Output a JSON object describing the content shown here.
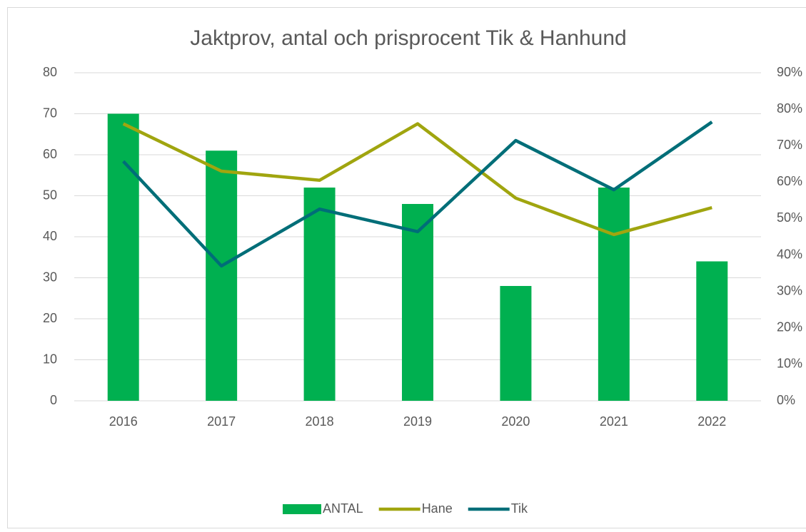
{
  "chart_data": {
    "type": "bar_line",
    "title": "Jaktprov, antal och prisprocent Tik & Hanhund",
    "categories": [
      "2016",
      "2017",
      "2018",
      "2019",
      "2020",
      "2021",
      "2022"
    ],
    "series": [
      {
        "name": "ANTAL",
        "type": "bar",
        "color": "#00b050",
        "values": [
          70,
          61,
          52,
          48,
          28,
          52,
          34
        ]
      },
      {
        "name": "Hane",
        "type": "line",
        "axis": "y2",
        "color": "#a0a50f",
        "values": [
          76,
          63,
          60.5,
          76,
          55.6,
          45.6,
          53
        ]
      },
      {
        "name": "Tik",
        "type": "line",
        "axis": "y2",
        "color": "#006e78",
        "values": [
          65.7,
          37,
          52.6,
          46.4,
          71.4,
          57.9,
          76.5
        ]
      }
    ],
    "ylim": [
      0,
      80
    ],
    "yticks": [
      0,
      10,
      20,
      30,
      40,
      50,
      60,
      70,
      80
    ],
    "y2lim": [
      0,
      90
    ],
    "y2ticks": [
      {
        "value": 0,
        "label": "0%"
      },
      {
        "value": 10,
        "label": "10%"
      },
      {
        "value": 20,
        "label": "20%"
      },
      {
        "value": 30,
        "label": "30%"
      },
      {
        "value": 40,
        "label": "40%"
      },
      {
        "value": 50,
        "label": "50%"
      },
      {
        "value": 60,
        "label": "60%"
      },
      {
        "value": 70,
        "label": "70%"
      },
      {
        "value": 80,
        "label": "80%"
      },
      {
        "value": 90,
        "label": "90%"
      }
    ],
    "grid": true,
    "legend": "bottom"
  }
}
